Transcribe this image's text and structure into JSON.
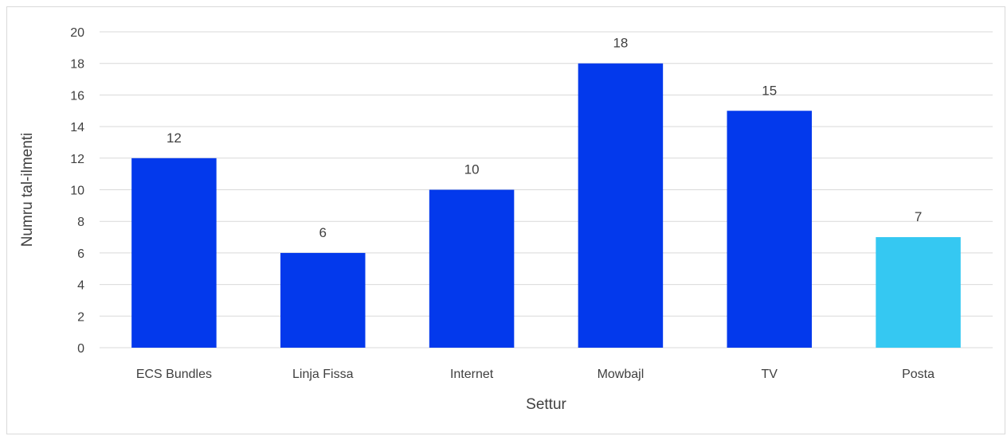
{
  "chart_data": {
    "type": "bar",
    "title": "",
    "xlabel": "Settur",
    "ylabel": "Numru tal-ilmenti",
    "categories": [
      "ECS Bundles",
      "Linja Fissa",
      "Internet",
      "Mowbajl",
      "TV",
      "Posta"
    ],
    "values": [
      12,
      6,
      10,
      18,
      15,
      7
    ],
    "bar_colors": [
      "#0339ec",
      "#0339ec",
      "#0339ec",
      "#0339ec",
      "#0339ec",
      "#35c8f2"
    ],
    "ylim": [
      0,
      20
    ],
    "yticks": [
      0,
      2,
      4,
      6,
      8,
      10,
      12,
      14,
      16,
      18,
      20
    ],
    "grid": true,
    "data_labels": true,
    "legend": "none"
  }
}
